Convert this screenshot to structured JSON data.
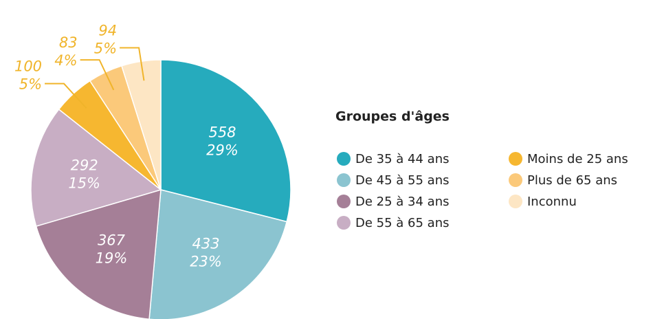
{
  "chart_data": {
    "type": "pie",
    "categories": [
      "De 35 à 44 ans",
      "De 45 à 55 ans",
      "De 25 à 34 ans",
      "De 55 à 65 ans",
      "Moins de 25 ans",
      "Plus de 65 ans",
      "Inconnu"
    ],
    "values": [
      558,
      433,
      367,
      292,
      100,
      83,
      94
    ],
    "percent_labels": [
      "29%",
      "23%",
      "19%",
      "15%",
      "5%",
      "4%",
      "5%"
    ],
    "colors": [
      "#26abbd",
      "#8bc4d0",
      "#a57f97",
      "#c8aec4",
      "#f6b730",
      "#fbc97a",
      "#fde6c4"
    ],
    "legend_title": "Groupes d'âges"
  }
}
